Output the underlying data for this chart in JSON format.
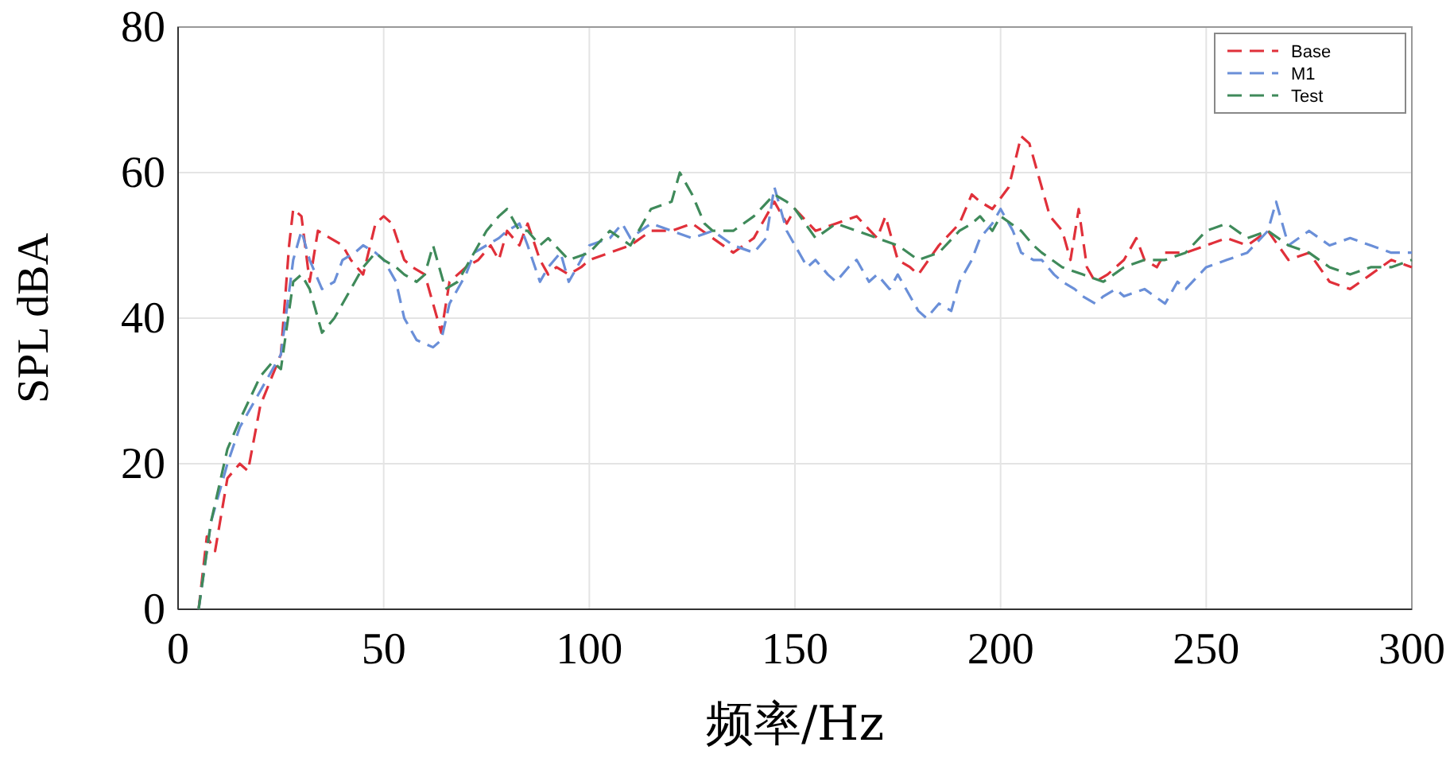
{
  "chart_data": {
    "type": "line",
    "xlabel": "频率/Hz",
    "ylabel": "SPL dBA",
    "xlim": [
      0,
      300
    ],
    "xticks": [
      0,
      50,
      100,
      150,
      200,
      250,
      300
    ],
    "ylim": [
      0,
      80
    ],
    "yticks": [
      0,
      20,
      40,
      60,
      80
    ],
    "grid": true,
    "legend": "top right",
    "line_style": "dashed",
    "marker": "none",
    "series": [
      {
        "name": "Base",
        "color": "#e0303a",
        "x": [
          5,
          7,
          9,
          12,
          15,
          17,
          20,
          25,
          27,
          28,
          30,
          32,
          34,
          37,
          40,
          42,
          45,
          48,
          50,
          52,
          55,
          57,
          60,
          62,
          64,
          66,
          70,
          73,
          76,
          78,
          80,
          83,
          85,
          88,
          90,
          92,
          95,
          98,
          100,
          105,
          110,
          115,
          120,
          125,
          130,
          135,
          140,
          145,
          148,
          150,
          155,
          160,
          165,
          170,
          172,
          175,
          178,
          180,
          185,
          190,
          193,
          195,
          198,
          202,
          205,
          207,
          210,
          212,
          215,
          217,
          219,
          221,
          223,
          226,
          230,
          233,
          235,
          238,
          240,
          245,
          250,
          255,
          260,
          265,
          270,
          275,
          280,
          285,
          290,
          295,
          300
        ],
        "values": [
          0,
          10,
          8,
          18,
          20,
          19,
          28,
          35,
          50,
          55,
          54,
          45,
          52,
          51,
          50,
          48,
          46,
          53,
          54,
          53,
          48,
          47,
          46,
          42,
          38,
          45,
          47,
          48,
          50,
          48,
          52,
          50,
          53,
          48,
          46,
          47,
          46,
          47,
          48,
          49,
          50,
          52,
          52,
          53,
          51,
          49,
          51,
          56,
          53,
          55,
          52,
          53,
          54,
          51,
          54,
          48,
          47,
          46,
          50,
          53,
          57,
          56,
          55,
          58,
          65,
          64,
          58,
          54,
          52,
          48,
          55,
          47,
          45,
          46,
          48,
          51,
          48,
          47,
          49,
          49,
          50,
          51,
          50,
          52,
          48,
          49,
          45,
          44,
          46,
          48,
          47
        ]
      },
      {
        "name": "M1",
        "color": "#6a8fd8",
        "x": [
          5,
          8,
          12,
          15,
          20,
          25,
          28,
          30,
          32,
          35,
          38,
          40,
          43,
          45,
          48,
          50,
          53,
          55,
          58,
          62,
          64,
          66,
          70,
          72,
          75,
          78,
          80,
          83,
          85,
          88,
          90,
          93,
          95,
          98,
          100,
          105,
          108,
          110,
          115,
          120,
          125,
          130,
          135,
          140,
          143,
          145,
          148,
          150,
          153,
          155,
          158,
          160,
          163,
          165,
          168,
          170,
          173,
          175,
          178,
          180,
          182,
          185,
          188,
          190,
          193,
          195,
          198,
          200,
          203,
          205,
          208,
          210,
          213,
          215,
          218,
          220,
          223,
          225,
          228,
          230,
          235,
          240,
          243,
          245,
          250,
          255,
          260,
          265,
          267,
          270,
          275,
          280,
          285,
          290,
          295,
          300
        ],
        "values": [
          0,
          12,
          20,
          25,
          30,
          35,
          48,
          52,
          48,
          44,
          45,
          48,
          49,
          50,
          49,
          48,
          45,
          40,
          37,
          36,
          37,
          42,
          46,
          49,
          50,
          51,
          52,
          53,
          50,
          45,
          47,
          49,
          45,
          48,
          50,
          51,
          53,
          51,
          53,
          52,
          51,
          52,
          50,
          49,
          51,
          58,
          52,
          50,
          47,
          48,
          46,
          45,
          47,
          48,
          45,
          46,
          44,
          46,
          43,
          41,
          40,
          42,
          41,
          45,
          48,
          51,
          53,
          55,
          52,
          49,
          48,
          48,
          46,
          45,
          44,
          43,
          42,
          43,
          44,
          43,
          44,
          42,
          45,
          44,
          47,
          48,
          49,
          52,
          56,
          50,
          52,
          50,
          51,
          50,
          49,
          49
        ]
      },
      {
        "name": "Test",
        "color": "#3f8a5a",
        "x": [
          5,
          8,
          12,
          15,
          20,
          23,
          25,
          28,
          30,
          32,
          35,
          38,
          40,
          43,
          45,
          48,
          50,
          53,
          55,
          58,
          60,
          62,
          65,
          68,
          70,
          73,
          75,
          78,
          80,
          83,
          85,
          88,
          90,
          95,
          100,
          105,
          110,
          115,
          120,
          122,
          125,
          128,
          130,
          135,
          140,
          145,
          148,
          150,
          155,
          160,
          165,
          170,
          175,
          180,
          185,
          190,
          193,
          195,
          198,
          200,
          205,
          208,
          210,
          215,
          220,
          225,
          230,
          235,
          240,
          245,
          250,
          255,
          260,
          265,
          270,
          275,
          280,
          285,
          290,
          295,
          300
        ],
        "values": [
          0,
          12,
          22,
          26,
          32,
          34,
          33,
          45,
          46,
          44,
          38,
          40,
          42,
          45,
          47,
          49,
          48,
          47,
          46,
          45,
          46,
          50,
          44,
          45,
          47,
          50,
          52,
          54,
          55,
          52,
          52,
          50,
          51,
          48,
          49,
          52,
          50,
          55,
          56,
          60,
          57,
          53,
          52,
          52,
          54,
          57,
          56,
          55,
          51,
          53,
          52,
          51,
          50,
          48,
          49,
          52,
          53,
          54,
          52,
          54,
          52,
          50,
          49,
          47,
          46,
          45,
          47,
          48,
          48,
          49,
          52,
          53,
          51,
          52,
          50,
          49,
          47,
          46,
          47,
          47,
          48
        ]
      }
    ]
  }
}
